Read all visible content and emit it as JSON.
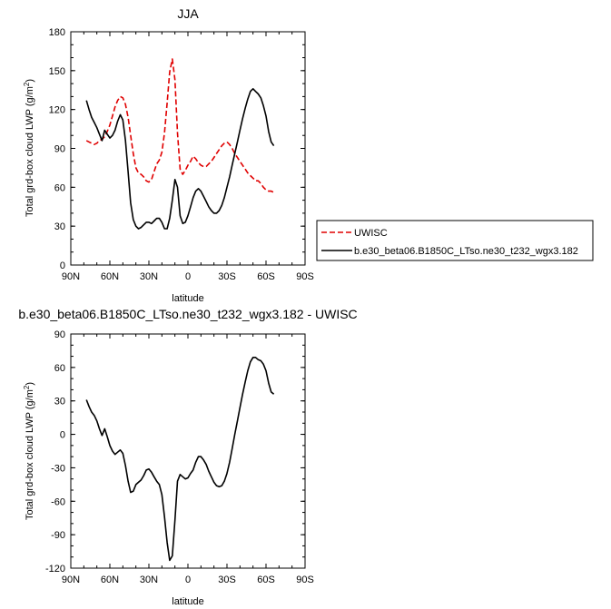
{
  "chart_data": [
    {
      "type": "line",
      "title": "JJA",
      "xlabel": "latitude",
      "ylabel": "Total grd-box cloud LWP (g/m",
      "ylabel_sup": "2",
      "ylabel_end": ")",
      "xlim": [
        90,
        -90
      ],
      "ylim": [
        0,
        180
      ],
      "xticks": [
        90,
        60,
        30,
        0,
        -30,
        -60,
        -90
      ],
      "xtick_labels": [
        "90N",
        "60N",
        "30N",
        "0",
        "30S",
        "60S",
        "90S"
      ],
      "yticks": [
        0,
        30,
        60,
        90,
        120,
        150,
        180
      ],
      "ytick_labels": [
        "0",
        "30",
        "60",
        "90",
        "120",
        "150",
        "180"
      ],
      "legend": "right, outside plot",
      "series": [
        {
          "name": "UWISC",
          "color": "#e00000",
          "dash": "dashed",
          "x": [
            78,
            76,
            74,
            72,
            70,
            68,
            66,
            64,
            62,
            60,
            58,
            56,
            54,
            52,
            50,
            48,
            46,
            44,
            42,
            40,
            38,
            36,
            34,
            32,
            30,
            28,
            26,
            24,
            22,
            20,
            18,
            16,
            14,
            12,
            10,
            8,
            6,
            4,
            2,
            0,
            -2,
            -4,
            -6,
            -8,
            -10,
            -12,
            -14,
            -16,
            -18,
            -20,
            -22,
            -24,
            -26,
            -28,
            -30,
            -32,
            -34,
            -36,
            -38,
            -40,
            -42,
            -44,
            -46,
            -48,
            -50,
            -52,
            -54,
            -56,
            -58,
            -60,
            -62,
            -64,
            -66
          ],
          "values": [
            96,
            95,
            94,
            93,
            94,
            96,
            97,
            99,
            103,
            108,
            115,
            122,
            127,
            130,
            129,
            124,
            114,
            100,
            86,
            75,
            71,
            70,
            68,
            65,
            64,
            66,
            72,
            78,
            81,
            87,
            102,
            125,
            149,
            159,
            143,
            102,
            74,
            70,
            73,
            77,
            80,
            84,
            82,
            79,
            77,
            76,
            76,
            78,
            80,
            83,
            86,
            89,
            92,
            94,
            95,
            93,
            90,
            86,
            83,
            80,
            77,
            74,
            71,
            69,
            67,
            65,
            65,
            63,
            60,
            58,
            57,
            57,
            56
          ]
        },
        {
          "name": "b.e30_beta06.B1850C_LTso.ne30_t232_wgx3.182",
          "color": "#000000",
          "dash": "solid",
          "x": [
            78,
            76,
            74,
            72,
            70,
            68,
            66,
            64,
            62,
            60,
            58,
            56,
            54,
            52,
            50,
            48,
            46,
            44,
            42,
            40,
            38,
            36,
            34,
            32,
            30,
            28,
            26,
            24,
            22,
            20,
            18,
            16,
            14,
            12,
            10,
            8,
            6,
            4,
            2,
            0,
            -2,
            -4,
            -6,
            -8,
            -10,
            -12,
            -14,
            -16,
            -18,
            -20,
            -22,
            -24,
            -26,
            -28,
            -30,
            -32,
            -34,
            -36,
            -38,
            -40,
            -42,
            -44,
            -46,
            -48,
            -50,
            -52,
            -54,
            -56,
            -58,
            -60,
            -62,
            -64,
            -66
          ],
          "values": [
            127,
            120,
            114,
            110,
            106,
            101,
            96,
            104,
            101,
            98,
            100,
            104,
            111,
            116,
            112,
            96,
            72,
            48,
            35,
            30,
            28,
            29,
            31,
            33,
            33,
            32,
            34,
            36,
            36,
            33,
            28,
            28,
            36,
            50,
            66,
            60,
            38,
            32,
            33,
            38,
            45,
            52,
            57,
            59,
            57,
            53,
            49,
            45,
            42,
            40,
            40,
            42,
            46,
            52,
            60,
            68,
            77,
            86,
            95,
            104,
            113,
            121,
            128,
            134,
            136,
            134,
            132,
            129,
            123,
            115,
            103,
            95,
            92
          ]
        }
      ]
    },
    {
      "type": "line",
      "title": "b.e30_beta06.B1850C_LTso.ne30_t232_wgx3.182 - UWISC",
      "xlabel": "latitude",
      "ylabel": "Total grd-box cloud LWP (g/m",
      "ylabel_sup": "2",
      "ylabel_end": ")",
      "xlim": [
        90,
        -90
      ],
      "ylim": [
        -120,
        90
      ],
      "xticks": [
        90,
        60,
        30,
        0,
        -30,
        -60,
        -90
      ],
      "xtick_labels": [
        "90N",
        "60N",
        "30N",
        "0",
        "30S",
        "60S",
        "90S"
      ],
      "yticks": [
        -120,
        -90,
        -60,
        -30,
        0,
        30,
        60,
        90
      ],
      "ytick_labels": [
        "-120",
        "-90",
        "-60",
        "-30",
        "0",
        "30",
        "60",
        "90"
      ],
      "series": [
        {
          "color": "#000000",
          "dash": "solid",
          "x": [
            78,
            76,
            74,
            72,
            70,
            68,
            66,
            64,
            62,
            60,
            58,
            56,
            54,
            52,
            50,
            48,
            46,
            44,
            42,
            40,
            38,
            36,
            34,
            32,
            30,
            28,
            26,
            24,
            22,
            20,
            18,
            16,
            14,
            12,
            10,
            8,
            6,
            4,
            2,
            0,
            -2,
            -4,
            -6,
            -8,
            -10,
            -12,
            -14,
            -16,
            -18,
            -20,
            -22,
            -24,
            -26,
            -28,
            -30,
            -32,
            -34,
            -36,
            -38,
            -40,
            -42,
            -44,
            -46,
            -48,
            -50,
            -52,
            -54,
            -56,
            -58,
            -60,
            -62,
            -64,
            -66
          ],
          "values": [
            31,
            25,
            20,
            17,
            12,
            5,
            -1,
            5,
            -2,
            -10,
            -15,
            -18,
            -16,
            -14,
            -17,
            -28,
            -42,
            -52,
            -51,
            -45,
            -43,
            -41,
            -37,
            -32,
            -31,
            -34,
            -38,
            -42,
            -45,
            -54,
            -74,
            -97,
            -113,
            -109,
            -77,
            -42,
            -36,
            -38,
            -40,
            -39,
            -35,
            -32,
            -25,
            -20,
            -20,
            -23,
            -27,
            -33,
            -38,
            -43,
            -46,
            -47,
            -46,
            -42,
            -35,
            -25,
            -13,
            0,
            12,
            24,
            36,
            47,
            57,
            65,
            69,
            69,
            67,
            66,
            63,
            57,
            46,
            38,
            36
          ]
        }
      ]
    }
  ]
}
